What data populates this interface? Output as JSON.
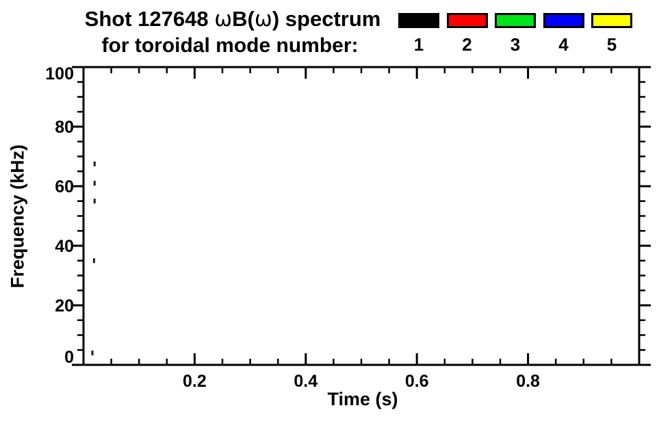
{
  "header": {
    "title_full": "Shot 127648 ωB(ω) spectrum",
    "title_parts": [
      {
        "text": "Shot 127648 ",
        "style": "bold"
      },
      {
        "text": "ω",
        "style": "symbol"
      },
      {
        "text": "B(",
        "style": "bold"
      },
      {
        "text": "ω",
        "style": "symbol"
      },
      {
        "text": ") spectrum",
        "style": "bold"
      }
    ],
    "subtitle": "for toroidal mode number:"
  },
  "legend": {
    "entries": [
      {
        "label": "1",
        "color": "#000000"
      },
      {
        "label": "2",
        "color": "#ff0000"
      },
      {
        "label": "3",
        "color": "#00e41c"
      },
      {
        "label": "4",
        "color": "#0000ff"
      },
      {
        "label": "5",
        "color": "#ffff00"
      }
    ]
  },
  "colors": {
    "axis": "#000000",
    "background": "#ffffff",
    "point": "#1a1a1a"
  },
  "chart_data": {
    "type": "scatter",
    "title": "Shot 127648 ωB(ω) spectrum",
    "subtitle": "for toroidal mode number:",
    "xlabel": "Time (s)",
    "ylabel": "Frequency (kHz)",
    "xlim": [
      0,
      1.0
    ],
    "ylim": [
      0,
      100
    ],
    "x_major_ticks": [
      0.2,
      0.4,
      0.6,
      0.8
    ],
    "x_major_tick_labels": [
      "0.2",
      "0.4",
      "0.6",
      "0.8"
    ],
    "x_minor_tick_interval": 0.05,
    "y_major_ticks": [
      0,
      20,
      40,
      60,
      80,
      100
    ],
    "y_major_tick_labels": [
      "0",
      "20",
      "40",
      "60",
      "80",
      "100"
    ],
    "y_minor_tick_interval": 5,
    "grid": false,
    "legend_position": "top-right",
    "legend_entries": [
      "1",
      "2",
      "3",
      "4",
      "5"
    ],
    "series": [
      {
        "name": "1",
        "color": "#000000",
        "points": [
          {
            "t": 0.02,
            "f": 67.5
          },
          {
            "t": 0.02,
            "f": 61.0
          },
          {
            "t": 0.02,
            "f": 55.0
          },
          {
            "t": 0.019,
            "f": 35.0
          },
          {
            "t": 0.016,
            "f": 4.0
          }
        ]
      }
    ]
  }
}
